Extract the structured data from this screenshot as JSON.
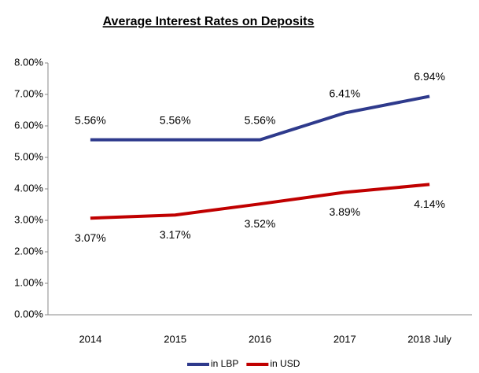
{
  "chart_data": {
    "type": "line",
    "title": "Average Interest Rates on Deposits",
    "categories": [
      "2014",
      "2015",
      "2016",
      "2017",
      "2018 July"
    ],
    "series": [
      {
        "name": "in LBP",
        "color": "#2e3a8c",
        "values": [
          5.56,
          5.56,
          5.56,
          6.41,
          6.94
        ],
        "value_labels": [
          "5.56%",
          "5.56%",
          "5.56%",
          "6.41%",
          "6.94%"
        ]
      },
      {
        "name": "in USD",
        "color": "#c00000",
        "values": [
          3.07,
          3.17,
          3.52,
          3.89,
          4.14
        ],
        "value_labels": [
          "3.07%",
          "3.17%",
          "3.52%",
          "3.89%",
          "4.14%"
        ]
      }
    ],
    "ylim": [
      0,
      8
    ],
    "yticks": [
      {
        "value": 0,
        "label": "0.00%"
      },
      {
        "value": 1,
        "label": "1.00%"
      },
      {
        "value": 2,
        "label": "2.00%"
      },
      {
        "value": 3,
        "label": "3.00%"
      },
      {
        "value": 4,
        "label": "4.00%"
      },
      {
        "value": 5,
        "label": "5.00%"
      },
      {
        "value": 6,
        "label": "6.00%"
      },
      {
        "value": 7,
        "label": "7.00%"
      },
      {
        "value": 8,
        "label": "8.00%"
      }
    ],
    "legend": "bottom"
  }
}
